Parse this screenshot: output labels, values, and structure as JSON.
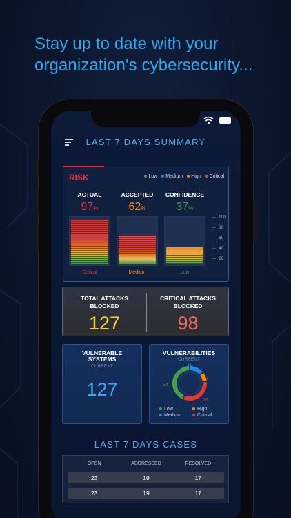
{
  "headline": "Stay up to date with your organization's cybersecurity...",
  "header": {
    "title": "LAST 7 DAYS SUMMARY"
  },
  "risk": {
    "label": "RISK",
    "legend": [
      {
        "label": "Low",
        "color": "#43a047"
      },
      {
        "label": "Medium",
        "color": "#1e88e5"
      },
      {
        "label": "High",
        "color": "#fb8c00"
      },
      {
        "label": "Critical",
        "color": "#e53935"
      }
    ],
    "metrics": [
      {
        "label": "ACTUAL",
        "value": "97",
        "unit": "%",
        "color": "#e53935",
        "level": 0.97,
        "caption": "Critical",
        "caption_color": "#e53935"
      },
      {
        "label": "ACCEPTED",
        "value": "62",
        "unit": "%",
        "color": "#fb8c00",
        "level": 0.62,
        "caption": "Medium",
        "caption_color": "#fb8c00"
      },
      {
        "label": "CONFIDENCE",
        "value": "37",
        "unit": "%",
        "color": "#43a047",
        "level": 0.37,
        "caption": "Low",
        "caption_color": "#43a047"
      }
    ],
    "scale": [
      "100",
      "80",
      "60",
      "40",
      "20"
    ]
  },
  "attacks": {
    "total_label_1": "TOTAL ATTACKS",
    "total_label_2": "BLOCKED",
    "total_value": "127",
    "critical_label_1": "CRITICAL ATTACKS",
    "critical_label_2": "BLOCKED",
    "critical_value": "98"
  },
  "vulnerable_systems": {
    "label_1": "VULNERABLE",
    "label_2": "SYSTEMS",
    "sub": "CURRENT",
    "value": "127"
  },
  "vulnerabilities": {
    "label": "VULNERABILITIES",
    "sub": "CURRENT",
    "segments": [
      {
        "label": "Medium",
        "value": "11",
        "color": "#1e88e5"
      },
      {
        "label": "High",
        "value": "7",
        "color": "#fb8c00"
      },
      {
        "label": "Critical",
        "value": "26",
        "color": "#e53935"
      },
      {
        "label": "Low",
        "value": "34",
        "color": "#43a047"
      }
    ],
    "legend": [
      {
        "label": "Low",
        "color": "#43a047"
      },
      {
        "label": "High",
        "color": "#fb8c00"
      },
      {
        "label": "Medium",
        "color": "#1e88e5"
      },
      {
        "label": "Critical",
        "color": "#e53935"
      }
    ]
  },
  "cases": {
    "title": "LAST 7 DAYS CASES",
    "headers": [
      "OPEN",
      "ADDRESSED",
      "RESOLVED"
    ],
    "rows": [
      [
        "23",
        "19",
        "17"
      ],
      [
        "23",
        "19",
        "17"
      ]
    ]
  }
}
